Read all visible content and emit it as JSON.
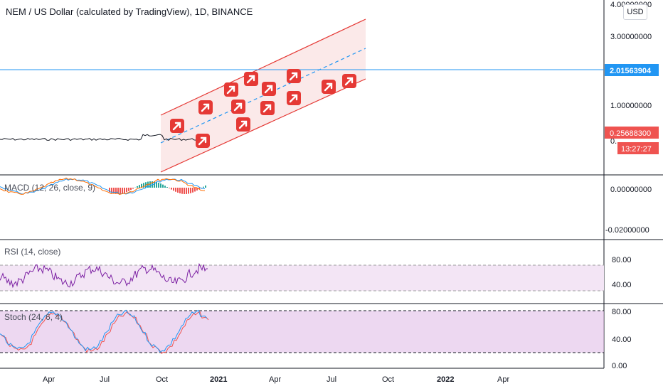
{
  "header": {
    "title": "NEM / US Dollar (calculated by TradingView), 1D, BINANCE",
    "currency": "USD"
  },
  "colors": {
    "accent_blue": "#2196f3",
    "price_label_red": "#ef5350",
    "channel_red": "#e53935",
    "channel_fill": "#fbe9e9",
    "macd_line": "#2196f3",
    "signal_line": "#ff6d00",
    "rsi_line": "#7b1fa2",
    "stoch_k": "#2196f3",
    "stoch_d": "#ef5350",
    "panel_fill": "#f3e5f5",
    "stoch_fill": "#e1bee7"
  },
  "price_panel": {
    "axis_labels": [
      "4.00000000",
      "3.00000000",
      "1.00000000",
      "0."
    ],
    "horizontal_line_label": "2.01563904",
    "last_price_label": "0.25688300",
    "countdown_label": "13:27:27"
  },
  "macd_panel": {
    "label": "MACD (12, 26, close, 9)",
    "axis_labels": [
      "0.00000000",
      "-0.02000000"
    ]
  },
  "rsi_panel": {
    "label": "RSI (14, close)",
    "axis_labels": [
      "80.00",
      "40.00"
    ]
  },
  "stoch_panel": {
    "label": "Stoch (24, 6, 4)",
    "axis_labels": [
      "80.00",
      "40.00",
      "0.00"
    ]
  },
  "time_axis": {
    "labels": [
      "Apr",
      "Jul",
      "Oct",
      "2021",
      "Apr",
      "Jul",
      "Oct",
      "2022",
      "Apr"
    ]
  },
  "chart_data": {
    "type": "line",
    "price": {
      "y_scale": "log",
      "ylim": [
        0.025,
        5
      ],
      "series": [
        {
          "values": [
            0.04,
            0.04,
            0.041,
            0.042,
            0.04,
            0.041,
            0.043,
            0.042,
            0.044,
            0.045,
            0.043,
            0.046,
            0.047,
            0.046,
            0.048,
            0.05,
            0.052,
            0.05,
            0.049,
            0.051,
            0.053,
            0.052,
            0.054,
            0.056,
            0.26
          ]
        }
      ],
      "horizontal_level": 2.01563904,
      "last_price": 0.256883,
      "channel": {
        "lower_start": 0.12,
        "lower_end": 1.55,
        "upper_start": 0.72,
        "upper_end": 9.5,
        "mid_start": 0.29,
        "mid_end": 3.8
      },
      "arrow_markers": 17
    },
    "macd": {
      "ylim": [
        -0.028,
        0.013
      ]
    },
    "rsi": {
      "ylim": [
        20,
        95
      ],
      "bands": [
        70,
        30
      ]
    },
    "stoch": {
      "ylim": [
        -5,
        85
      ],
      "bands": [
        80,
        20
      ]
    }
  }
}
